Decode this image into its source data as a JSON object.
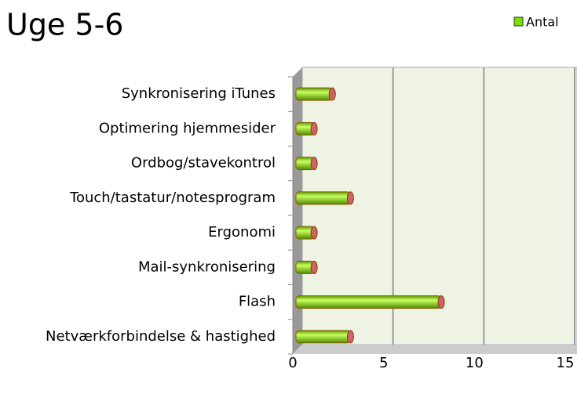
{
  "chart_data": {
    "type": "bar",
    "orientation": "horizontal",
    "title": "Uge 5-6",
    "categories": [
      "Synkronisering iTunes",
      "Optimering hjemmesider",
      "Ordbog/stavekontrol",
      "Touch/tastatur/notesprogram",
      "Ergonomi",
      "Mail-synkronisering",
      "Flash",
      "Netværkforbindelse & hastighed"
    ],
    "series": [
      {
        "name": "Antal",
        "color": "#7fe000",
        "values": [
          2,
          1,
          1,
          3,
          1,
          1,
          8,
          3
        ]
      }
    ],
    "xlim": [
      0,
      15
    ],
    "xticks": [
      0,
      5,
      10,
      15
    ],
    "grid": true,
    "legend": "top-right"
  }
}
